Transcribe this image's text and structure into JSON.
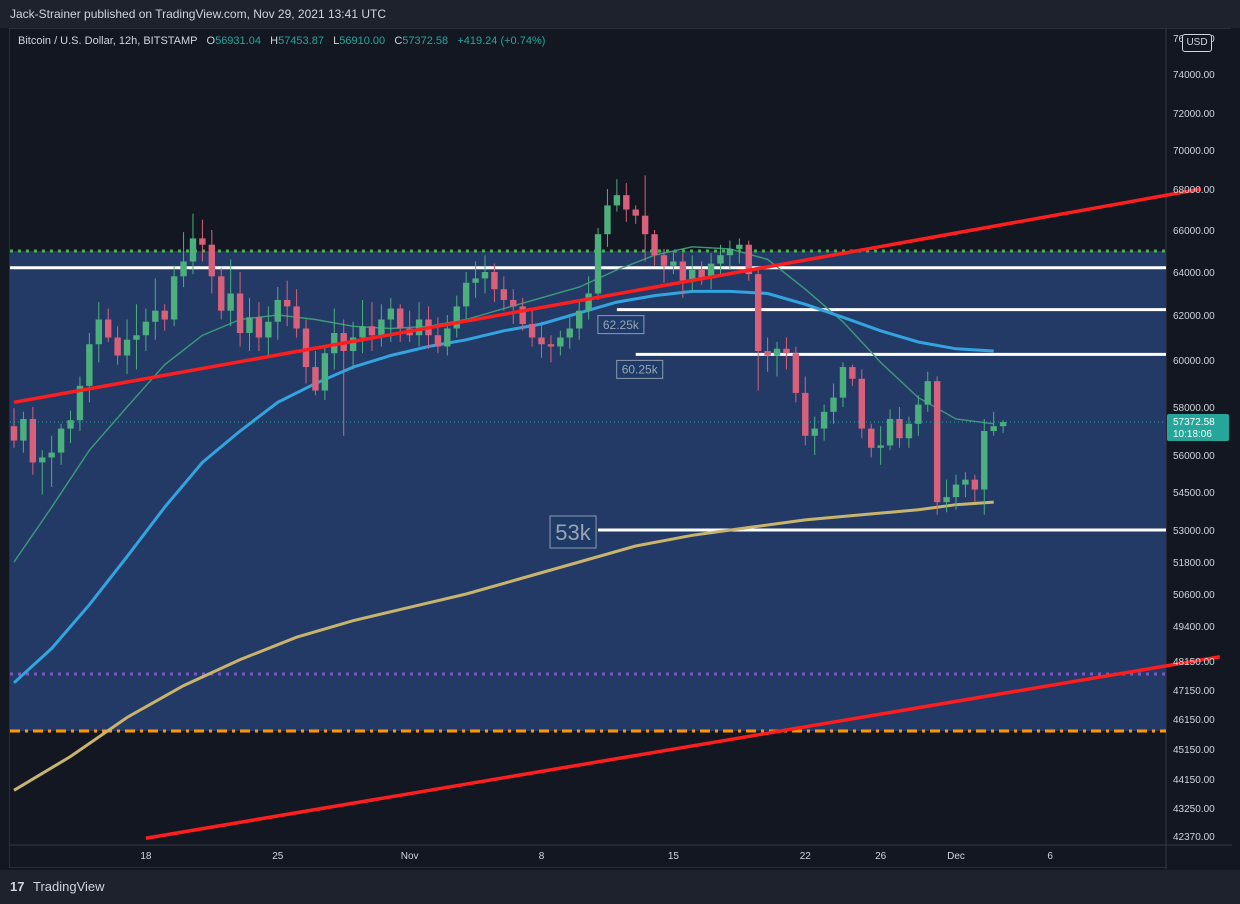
{
  "publisher": "Jack-Strainer published on TradingView.com, Nov 29, 2021 13:41 UTC",
  "footer": {
    "brand": "TradingView",
    "logo_glyph": "17"
  },
  "legend": {
    "symbol": "Bitcoin / U.S. Dollar, 12h, BITSTAMP",
    "open_label": "O",
    "open": "56931.04",
    "high_label": "H",
    "high": "57453.87",
    "low_label": "L",
    "low": "56910.00",
    "close_label": "C",
    "close": "57372.58",
    "change": "+419.24 (+0.74%)"
  },
  "currency_badge": "USD",
  "price_axis_top_partial": "76000.00",
  "chart_data": {
    "type": "candlestick",
    "symbol": "Bitcoin / U.S. Dollar",
    "interval": "12h",
    "exchange": "BITSTAMP",
    "y_ticks": [
      {
        "label": "74000.00",
        "value": 74000
      },
      {
        "label": "72000.00",
        "value": 72000
      },
      {
        "label": "70000.00",
        "value": 70000
      },
      {
        "label": "68000.00",
        "value": 68000
      },
      {
        "label": "66000.00",
        "value": 66000
      },
      {
        "label": "64000.00",
        "value": 64000
      },
      {
        "label": "62000.00",
        "value": 62000
      },
      {
        "label": "60000.00",
        "value": 60000
      },
      {
        "label": "58000.00",
        "value": 58000
      },
      {
        "label": "56000.00",
        "value": 56000
      },
      {
        "label": "54500.00",
        "value": 54500
      },
      {
        "label": "53000.00",
        "value": 53000
      },
      {
        "label": "51800.00",
        "value": 51800
      },
      {
        "label": "50600.00",
        "value": 50600
      },
      {
        "label": "49400.00",
        "value": 49400
      },
      {
        "label": "48150.00",
        "value": 48150
      },
      {
        "label": "47150.00",
        "value": 47150
      },
      {
        "label": "46150.00",
        "value": 46150
      },
      {
        "label": "45150.00",
        "value": 45150
      },
      {
        "label": "44150.00",
        "value": 44150
      },
      {
        "label": "43250.00",
        "value": 43250
      },
      {
        "label": "42370.00",
        "value": 42370
      }
    ],
    "x_ticks": [
      {
        "label": "18",
        "day": 7
      },
      {
        "label": "25",
        "day": 14
      },
      {
        "label": "Nov",
        "day": 21
      },
      {
        "label": "8",
        "day": 28
      },
      {
        "label": "15",
        "day": 35
      },
      {
        "label": "22",
        "day": 42
      },
      {
        "label": "26",
        "day": 46
      },
      {
        "label": "Dec",
        "day": 50
      },
      {
        "label": "6",
        "day": 55
      }
    ],
    "last_price": {
      "value": 57372.58,
      "label": "57372.58",
      "countdown": "10:18:06"
    },
    "candles": [
      [
        57200,
        57950,
        56300,
        56600
      ],
      [
        56600,
        57800,
        56100,
        57500
      ],
      [
        57500,
        58000,
        55200,
        55700
      ],
      [
        55700,
        56200,
        54400,
        55900
      ],
      [
        55900,
        56800,
        54700,
        56100
      ],
      [
        56100,
        57300,
        55600,
        57100
      ],
      [
        57100,
        57850,
        56500,
        57450
      ],
      [
        57450,
        59300,
        57000,
        58900
      ],
      [
        58900,
        61200,
        58200,
        60700
      ],
      [
        60700,
        62600,
        59900,
        61800
      ],
      [
        61800,
        62300,
        60800,
        61000
      ],
      [
        61000,
        61500,
        59800,
        60200
      ],
      [
        60200,
        61800,
        59400,
        60900
      ],
      [
        60900,
        62500,
        59600,
        61100
      ],
      [
        61100,
        62300,
        60400,
        61700
      ],
      [
        61700,
        63700,
        60900,
        62200
      ],
      [
        62200,
        62500,
        61300,
        61800
      ],
      [
        61800,
        64300,
        61500,
        63800
      ],
      [
        63800,
        65900,
        63300,
        64500
      ],
      [
        64500,
        66800,
        63900,
        65600
      ],
      [
        65600,
        66500,
        64500,
        65300
      ],
      [
        65300,
        66000,
        63000,
        63800
      ],
      [
        63800,
        64200,
        61800,
        62200
      ],
      [
        62200,
        64600,
        61500,
        63000
      ],
      [
        63000,
        64000,
        60600,
        61200
      ],
      [
        61200,
        62800,
        60400,
        61900
      ],
      [
        61900,
        62600,
        60400,
        61000
      ],
      [
        61000,
        62400,
        60200,
        61700
      ],
      [
        61700,
        63300,
        60900,
        62700
      ],
      [
        62700,
        63600,
        61500,
        62400
      ],
      [
        62400,
        63200,
        61000,
        61400
      ],
      [
        61400,
        61800,
        59000,
        59700
      ],
      [
        59700,
        60400,
        58500,
        58700
      ],
      [
        58700,
        60600,
        58300,
        60300
      ],
      [
        60300,
        62300,
        59600,
        61200
      ],
      [
        61200,
        61800,
        56800,
        60400
      ],
      [
        60400,
        61700,
        59600,
        61000
      ],
      [
        61000,
        62700,
        60300,
        61500
      ],
      [
        61500,
        62600,
        60400,
        61100
      ],
      [
        61100,
        62500,
        60600,
        61800
      ],
      [
        61800,
        62800,
        60800,
        62300
      ],
      [
        62300,
        62500,
        60800,
        61400
      ],
      [
        61400,
        62200,
        60800,
        61100
      ],
      [
        61100,
        62600,
        60600,
        61800
      ],
      [
        61800,
        62400,
        60500,
        61100
      ],
      [
        61100,
        61900,
        60300,
        60600
      ],
      [
        60600,
        62000,
        60200,
        61400
      ],
      [
        61400,
        62900,
        61000,
        62400
      ],
      [
        62400,
        64000,
        61700,
        63500
      ],
      [
        63500,
        64500,
        62800,
        63700
      ],
      [
        63700,
        64800,
        63000,
        64000
      ],
      [
        64000,
        64400,
        62600,
        63200
      ],
      [
        63200,
        63800,
        62200,
        62700
      ],
      [
        62700,
        63200,
        61600,
        62400
      ],
      [
        62400,
        62800,
        61300,
        61600
      ],
      [
        61600,
        62200,
        60600,
        61000
      ],
      [
        61000,
        61700,
        60100,
        60700
      ],
      [
        60700,
        61100,
        59900,
        60600
      ],
      [
        60600,
        61300,
        60200,
        61000
      ],
      [
        61000,
        61900,
        60500,
        61400
      ],
      [
        61400,
        62700,
        60900,
        62200
      ],
      [
        62200,
        63800,
        61800,
        63000
      ],
      [
        63000,
        66100,
        62700,
        65800
      ],
      [
        65800,
        68000,
        65200,
        67200
      ],
      [
        67200,
        68500,
        66900,
        67700
      ],
      [
        67700,
        68300,
        66400,
        67000
      ],
      [
        67000,
        67200,
        66300,
        66700
      ],
      [
        66700,
        68700,
        64500,
        65800
      ],
      [
        65800,
        66000,
        64300,
        64800
      ],
      [
        64800,
        65100,
        63500,
        64300
      ],
      [
        64300,
        65000,
        63900,
        64500
      ],
      [
        64500,
        64900,
        62800,
        63600
      ],
      [
        63600,
        64800,
        63100,
        64100
      ],
      [
        64100,
        64500,
        63400,
        63700
      ],
      [
        63700,
        64900,
        63200,
        64400
      ],
      [
        64400,
        65300,
        63800,
        64800
      ],
      [
        64800,
        65500,
        64100,
        65100
      ],
      [
        65100,
        65600,
        64400,
        65300
      ],
      [
        65300,
        65500,
        63600,
        63900
      ],
      [
        63900,
        64100,
        58700,
        60400
      ],
      [
        60400,
        61000,
        59500,
        60200
      ],
      [
        60200,
        60800,
        59300,
        60500
      ],
      [
        60500,
        61000,
        59600,
        60300
      ],
      [
        60300,
        60600,
        58200,
        58600
      ],
      [
        58600,
        59300,
        56400,
        56800
      ],
      [
        56800,
        57600,
        56000,
        57100
      ],
      [
        57100,
        58100,
        56600,
        57800
      ],
      [
        57800,
        59000,
        57300,
        58400
      ],
      [
        58400,
        59900,
        58000,
        59700
      ],
      [
        59700,
        59800,
        58900,
        59200
      ],
      [
        59200,
        59600,
        56700,
        57100
      ],
      [
        57100,
        57300,
        55900,
        56300
      ],
      [
        56300,
        57200,
        55600,
        56400
      ],
      [
        56400,
        57900,
        56200,
        57500
      ],
      [
        57500,
        58000,
        56300,
        56700
      ],
      [
        56700,
        57600,
        56300,
        57300
      ],
      [
        57300,
        58500,
        56800,
        58100
      ],
      [
        58100,
        59500,
        57800,
        59100
      ],
      [
        59100,
        59300,
        53600,
        54100
      ],
      [
        54100,
        55000,
        53700,
        54300
      ],
      [
        54300,
        55200,
        53800,
        54800
      ],
      [
        54800,
        55300,
        54300,
        55000
      ],
      [
        55000,
        55200,
        54100,
        54600
      ],
      [
        54600,
        57500,
        53600,
        57000
      ],
      [
        57000,
        57800,
        56800,
        57200
      ],
      [
        57200,
        57450,
        56910,
        57370
      ]
    ],
    "moving_averages": [
      {
        "color": "#3c9b78",
        "values": [
          [
            0,
            51800
          ],
          [
            4,
            53900
          ],
          [
            8,
            56200
          ],
          [
            12,
            58000
          ],
          [
            16,
            59800
          ],
          [
            20,
            61100
          ],
          [
            24,
            61800
          ],
          [
            28,
            62000
          ],
          [
            32,
            61800
          ],
          [
            36,
            61500
          ],
          [
            40,
            61400
          ],
          [
            44,
            61500
          ],
          [
            48,
            61800
          ],
          [
            52,
            62300
          ],
          [
            56,
            62800
          ],
          [
            60,
            63300
          ],
          [
            64,
            64100
          ],
          [
            68,
            64800
          ],
          [
            72,
            65200
          ],
          [
            76,
            65100
          ],
          [
            80,
            64600
          ],
          [
            84,
            63200
          ],
          [
            88,
            61700
          ],
          [
            92,
            59900
          ],
          [
            96,
            58400
          ],
          [
            100,
            57500
          ],
          [
            104,
            57300
          ]
        ]
      },
      {
        "color": "#33a4e0",
        "values": [
          [
            0,
            47400
          ],
          [
            4,
            48600
          ],
          [
            8,
            50200
          ],
          [
            12,
            52000
          ],
          [
            16,
            53900
          ],
          [
            20,
            55700
          ],
          [
            24,
            57000
          ],
          [
            28,
            58200
          ],
          [
            32,
            59000
          ],
          [
            36,
            59700
          ],
          [
            40,
            60200
          ],
          [
            44,
            60600
          ],
          [
            48,
            60900
          ],
          [
            52,
            61300
          ],
          [
            56,
            61600
          ],
          [
            60,
            62100
          ],
          [
            64,
            62600
          ],
          [
            68,
            62900
          ],
          [
            72,
            63100
          ],
          [
            76,
            63100
          ],
          [
            80,
            63000
          ],
          [
            84,
            62500
          ],
          [
            88,
            61900
          ],
          [
            92,
            61300
          ],
          [
            96,
            60800
          ],
          [
            100,
            60500
          ],
          [
            104,
            60400
          ]
        ]
      },
      {
        "color": "#c9b46e",
        "values": [
          [
            0,
            43800
          ],
          [
            6,
            44900
          ],
          [
            12,
            46200
          ],
          [
            18,
            47300
          ],
          [
            24,
            48200
          ],
          [
            30,
            49000
          ],
          [
            36,
            49600
          ],
          [
            42,
            50100
          ],
          [
            48,
            50600
          ],
          [
            54,
            51200
          ],
          [
            60,
            51800
          ],
          [
            66,
            52400
          ],
          [
            72,
            52800
          ],
          [
            78,
            53100
          ],
          [
            84,
            53400
          ],
          [
            90,
            53600
          ],
          [
            96,
            53800
          ],
          [
            100,
            54000
          ],
          [
            104,
            54100
          ]
        ]
      }
    ],
    "horizontal_levels": [
      {
        "value": 64200,
        "color": "#ffffff",
        "style": "solid",
        "from_day": 0
      },
      {
        "value": 62250,
        "color": "#ffffff",
        "style": "solid",
        "from_day": 32,
        "label": "62.25k"
      },
      {
        "value": 60250,
        "color": "#ffffff",
        "style": "solid",
        "from_day": 33,
        "label": "60.25k"
      },
      {
        "value": 53000,
        "color": "#ffffff",
        "style": "solid",
        "from_day": 31,
        "label": "53k"
      },
      {
        "value": 65000,
        "color": "#4caf50",
        "style": "dotted",
        "from_day": 0
      },
      {
        "value": 47700,
        "color": "#7e57c2",
        "style": "dotted",
        "from_day": 0
      },
      {
        "value": 45750,
        "color": "#ff9800",
        "style": "dashdot",
        "from_day": 0
      }
    ],
    "trend_lines": [
      {
        "color": "#ff1e1e",
        "from": [
          0,
          58200
        ],
        "to": [
          63,
          68000
        ]
      },
      {
        "color": "#ff1e1e",
        "from": [
          7,
          42300
        ],
        "to": [
          64,
          48300
        ]
      }
    ],
    "shaded_zone": {
      "top": 65000,
      "bottom": 45750,
      "color": "#233a67"
    }
  }
}
